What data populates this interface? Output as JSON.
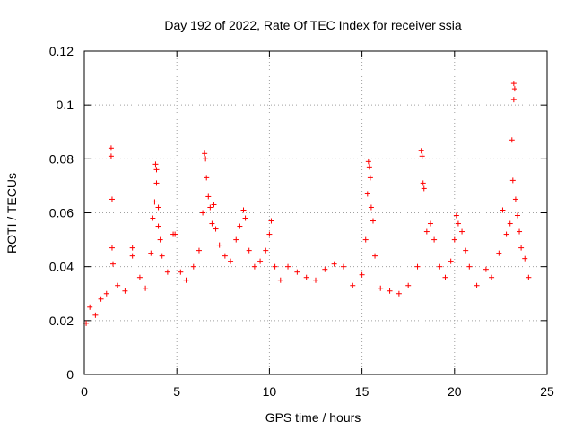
{
  "chart_data": {
    "type": "scatter",
    "title": "Day 192 of 2022, Rate Of TEC Index for receiver ssia",
    "xlabel": "GPS time / hours",
    "ylabel": "ROTI / TECUs",
    "xlim": [
      0,
      25
    ],
    "ylim": [
      0,
      0.12
    ],
    "xticks": [
      "0",
      "5",
      "10",
      "15",
      "20",
      "25"
    ],
    "yticks": [
      "0",
      "0.02",
      "0.04",
      "0.06",
      "0.08",
      "0.1",
      "0.12"
    ],
    "grid": true,
    "marker": "+",
    "color": "#ff0000",
    "series": [
      {
        "points": [
          [
            0.1,
            0.019
          ],
          [
            0.3,
            0.025
          ],
          [
            0.6,
            0.022
          ],
          [
            0.9,
            0.028
          ],
          [
            1.2,
            0.03
          ],
          [
            1.45,
            0.084
          ],
          [
            1.45,
            0.081
          ],
          [
            1.5,
            0.065
          ],
          [
            1.5,
            0.047
          ],
          [
            1.55,
            0.041
          ],
          [
            1.8,
            0.033
          ],
          [
            2.2,
            0.031
          ],
          [
            2.6,
            0.047
          ],
          [
            2.6,
            0.044
          ],
          [
            3.0,
            0.036
          ],
          [
            3.3,
            0.032
          ],
          [
            3.6,
            0.045
          ],
          [
            3.7,
            0.058
          ],
          [
            3.8,
            0.064
          ],
          [
            3.85,
            0.078
          ],
          [
            3.9,
            0.076
          ],
          [
            3.9,
            0.071
          ],
          [
            4.0,
            0.062
          ],
          [
            4.0,
            0.055
          ],
          [
            4.1,
            0.05
          ],
          [
            4.2,
            0.044
          ],
          [
            4.5,
            0.038
          ],
          [
            4.8,
            0.052
          ],
          [
            4.9,
            0.052
          ],
          [
            5.2,
            0.038
          ],
          [
            5.5,
            0.035
          ],
          [
            5.9,
            0.04
          ],
          [
            6.2,
            0.046
          ],
          [
            6.4,
            0.06
          ],
          [
            6.5,
            0.082
          ],
          [
            6.55,
            0.08
          ],
          [
            6.6,
            0.073
          ],
          [
            6.7,
            0.066
          ],
          [
            6.8,
            0.062
          ],
          [
            6.9,
            0.056
          ],
          [
            7.0,
            0.063
          ],
          [
            7.1,
            0.054
          ],
          [
            7.3,
            0.048
          ],
          [
            7.6,
            0.044
          ],
          [
            7.9,
            0.042
          ],
          [
            8.2,
            0.05
          ],
          [
            8.4,
            0.055
          ],
          [
            8.6,
            0.061
          ],
          [
            8.7,
            0.058
          ],
          [
            8.9,
            0.046
          ],
          [
            9.2,
            0.04
          ],
          [
            9.5,
            0.042
          ],
          [
            9.8,
            0.046
          ],
          [
            10.0,
            0.052
          ],
          [
            10.1,
            0.057
          ],
          [
            10.3,
            0.04
          ],
          [
            10.6,
            0.035
          ],
          [
            11.0,
            0.04
          ],
          [
            11.5,
            0.038
          ],
          [
            12.0,
            0.036
          ],
          [
            12.5,
            0.035
          ],
          [
            13.0,
            0.039
          ],
          [
            13.5,
            0.041
          ],
          [
            14.0,
            0.04
          ],
          [
            14.5,
            0.033
          ],
          [
            15.0,
            0.037
          ],
          [
            15.2,
            0.05
          ],
          [
            15.3,
            0.067
          ],
          [
            15.35,
            0.079
          ],
          [
            15.4,
            0.077
          ],
          [
            15.45,
            0.073
          ],
          [
            15.5,
            0.062
          ],
          [
            15.6,
            0.057
          ],
          [
            15.7,
            0.044
          ],
          [
            16.0,
            0.032
          ],
          [
            16.5,
            0.031
          ],
          [
            17.0,
            0.03
          ],
          [
            17.5,
            0.033
          ],
          [
            18.0,
            0.04
          ],
          [
            18.2,
            0.083
          ],
          [
            18.25,
            0.081
          ],
          [
            18.3,
            0.071
          ],
          [
            18.35,
            0.069
          ],
          [
            18.5,
            0.053
          ],
          [
            18.7,
            0.056
          ],
          [
            18.9,
            0.05
          ],
          [
            19.2,
            0.04
          ],
          [
            19.5,
            0.036
          ],
          [
            19.8,
            0.042
          ],
          [
            20.0,
            0.05
          ],
          [
            20.1,
            0.059
          ],
          [
            20.2,
            0.056
          ],
          [
            20.4,
            0.053
          ],
          [
            20.6,
            0.046
          ],
          [
            20.8,
            0.04
          ],
          [
            21.2,
            0.033
          ],
          [
            21.7,
            0.039
          ],
          [
            22.0,
            0.036
          ],
          [
            22.4,
            0.045
          ],
          [
            22.6,
            0.061
          ],
          [
            22.8,
            0.052
          ],
          [
            23.0,
            0.056
          ],
          [
            23.1,
            0.087
          ],
          [
            23.15,
            0.072
          ],
          [
            23.2,
            0.102
          ],
          [
            23.2,
            0.108
          ],
          [
            23.25,
            0.106
          ],
          [
            23.3,
            0.065
          ],
          [
            23.4,
            0.059
          ],
          [
            23.5,
            0.053
          ],
          [
            23.6,
            0.047
          ],
          [
            23.8,
            0.043
          ],
          [
            24.0,
            0.036
          ]
        ]
      }
    ]
  }
}
